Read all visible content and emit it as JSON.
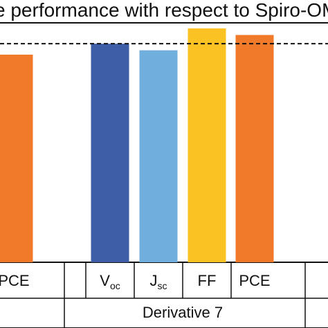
{
  "title": "e performance with respect to Spiro-OM",
  "chart_data": {
    "type": "bar",
    "title": "e performance with respect to Spiro-OM",
    "ylim": [
      0,
      1.2
    ],
    "reference_line": {
      "value": 1.0,
      "style": "dashed"
    },
    "bars": [
      {
        "group": "",
        "label": "PCE",
        "sub": "",
        "value": 0.95,
        "color": "#f07a2a"
      },
      {
        "group": "Derivative 7",
        "label": "V",
        "sub": "oc",
        "value": 1.0,
        "color": "#3f5ea8"
      },
      {
        "group": "Derivative 7",
        "label": "J",
        "sub": "sc",
        "value": 0.97,
        "color": "#70aedd"
      },
      {
        "group": "Derivative 7",
        "label": "FF",
        "sub": "",
        "value": 1.07,
        "color": "#fbc224"
      },
      {
        "group": "Derivative 7",
        "label": "PCE",
        "sub": "",
        "value": 1.04,
        "color": "#f07a2a"
      }
    ],
    "groups": [
      "Derivative 7"
    ],
    "grid": false,
    "legend": "none"
  }
}
